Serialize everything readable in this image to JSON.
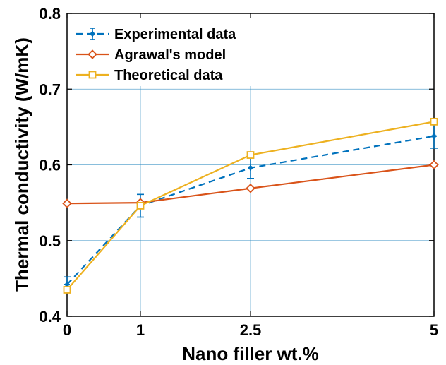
{
  "chart_data": {
    "type": "line",
    "title": "",
    "xlabel": "Nano filler wt.%",
    "ylabel": "Thermal conductivity (W/mK)",
    "x": [
      0,
      1,
      2.5,
      5
    ],
    "x_tick_labels": [
      "0",
      "1",
      "2.5",
      "5"
    ],
    "xlim": [
      0,
      5
    ],
    "ylim": [
      0.4,
      0.8
    ],
    "y_ticks": [
      0.4,
      0.5,
      0.6,
      0.7,
      0.8
    ],
    "y_tick_labels": [
      "0.4",
      "0.5",
      "0.6",
      "0.7",
      "0.8"
    ],
    "grid": true,
    "legend_position": "top-left",
    "series": [
      {
        "name": "Experimental data",
        "values": [
          0.442,
          0.546,
          0.596,
          0.638
        ],
        "errors": [
          0.01,
          0.015,
          0.014,
          0.016
        ],
        "color": "#0072BD",
        "line_style": "dashed",
        "marker": "point"
      },
      {
        "name": "Agrawal's model",
        "values": [
          0.549,
          0.55,
          0.569,
          0.6
        ],
        "color": "#D95319",
        "line_style": "solid",
        "marker": "diamond"
      },
      {
        "name": "Theoretical data",
        "values": [
          0.435,
          0.546,
          0.613,
          0.657
        ],
        "color": "#EDB120",
        "line_style": "solid",
        "marker": "square"
      }
    ]
  }
}
